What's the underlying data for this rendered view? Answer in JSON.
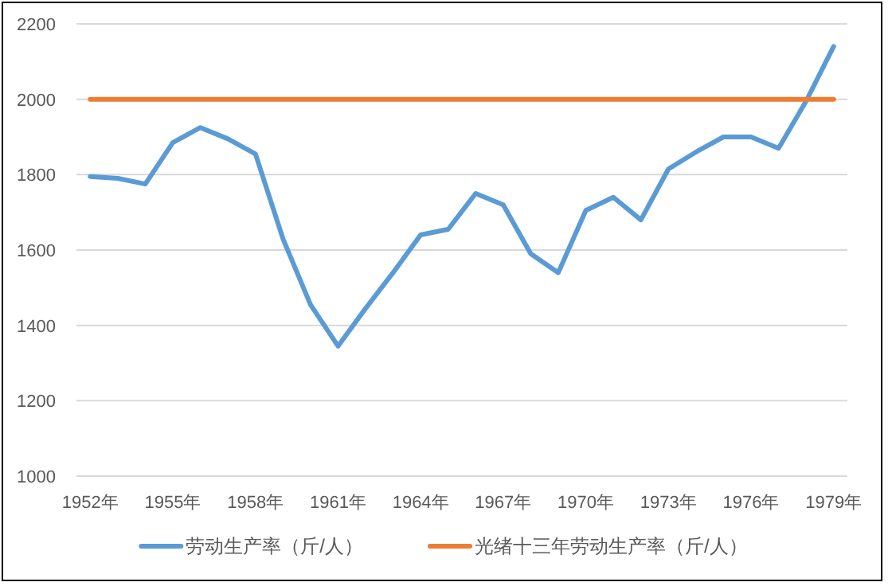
{
  "chart_data": {
    "type": "line",
    "categories": [
      "1952年",
      null,
      null,
      "1955年",
      null,
      null,
      "1958年",
      null,
      null,
      "1961年",
      null,
      null,
      "1964年",
      null,
      null,
      "1967年",
      null,
      null,
      "1970年",
      null,
      null,
      "1973年",
      null,
      null,
      "1976年",
      null,
      null,
      "1979年"
    ],
    "series": [
      {
        "name": "劳动生产率（斤/人）",
        "color": "#5b9bd5",
        "values": [
          1795,
          1790,
          1775,
          1885,
          1925,
          1895,
          1855,
          1630,
          1455,
          1345,
          1445,
          1540,
          1640,
          1655,
          1750,
          1720,
          1590,
          1540,
          1705,
          1740,
          1680,
          1815,
          1860,
          1900,
          1900,
          1870,
          1995,
          2140
        ]
      },
      {
        "name": "光绪十三年劳动生产率（斤/人）",
        "color": "#ed7d31",
        "values": [
          2000,
          2000,
          2000,
          2000,
          2000,
          2000,
          2000,
          2000,
          2000,
          2000,
          2000,
          2000,
          2000,
          2000,
          2000,
          2000,
          2000,
          2000,
          2000,
          2000,
          2000,
          2000,
          2000,
          2000,
          2000,
          2000,
          2000,
          2000
        ]
      }
    ],
    "ylim": [
      1000,
      2200
    ],
    "yticks": [
      1000,
      1200,
      1400,
      1600,
      1800,
      2000,
      2200
    ],
    "grid": "y",
    "legend": "bottom"
  }
}
